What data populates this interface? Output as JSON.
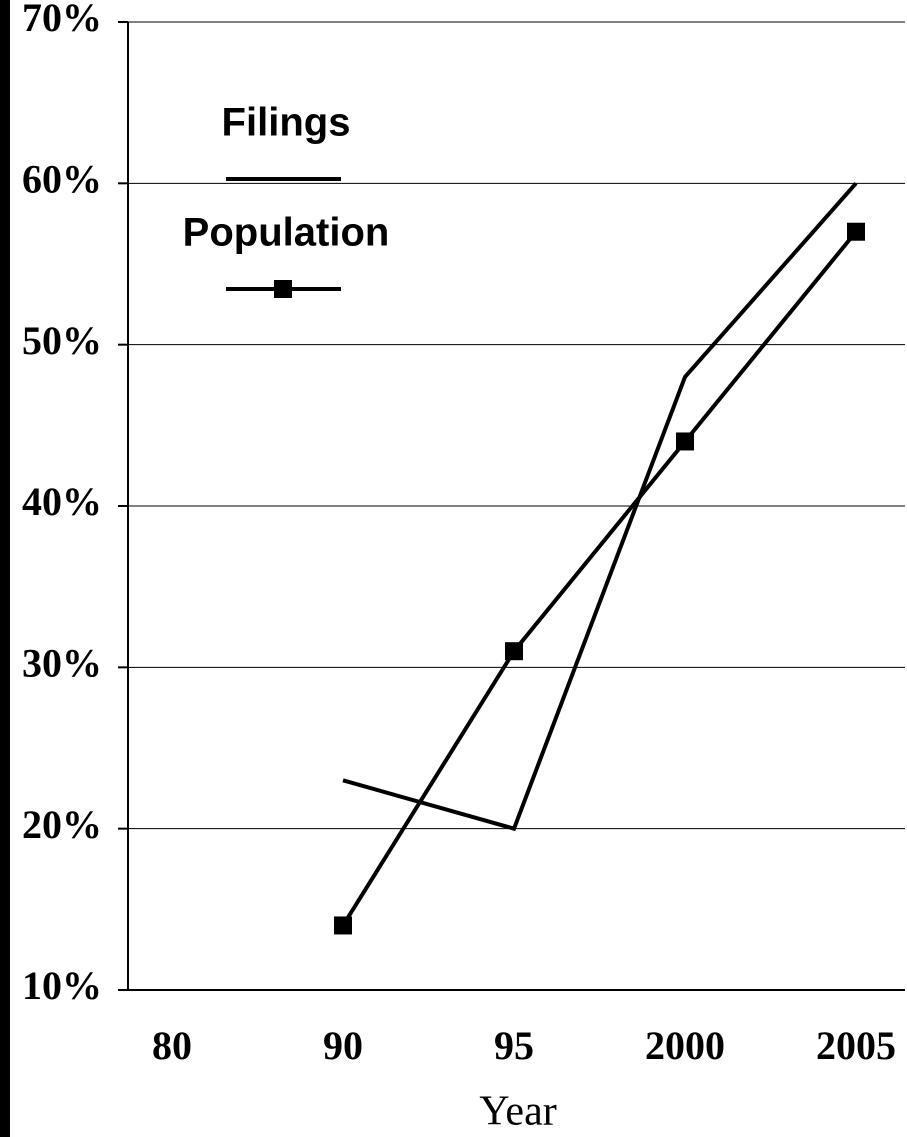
{
  "chart_data": {
    "type": "line",
    "x_label": "Year",
    "categories": [
      "80",
      "90",
      "95",
      "2000",
      "2005"
    ],
    "series": [
      {
        "name": "Filings",
        "color": "#000000",
        "marker": "none",
        "values": [
          null,
          23,
          20,
          48,
          60
        ]
      },
      {
        "name": "Population",
        "color": "#000000",
        "marker": "square",
        "values": [
          null,
          14,
          31,
          44,
          57
        ]
      }
    ],
    "ylim": [
      10,
      70
    ],
    "yticks": [
      {
        "value": 10,
        "label": "10%"
      },
      {
        "value": 20,
        "label": "20%"
      },
      {
        "value": 30,
        "label": "30%"
      },
      {
        "value": 40,
        "label": "40%"
      },
      {
        "value": 50,
        "label": "50%"
      },
      {
        "value": 60,
        "label": "60%"
      },
      {
        "value": 70,
        "label": "70%"
      }
    ],
    "grid": true
  }
}
